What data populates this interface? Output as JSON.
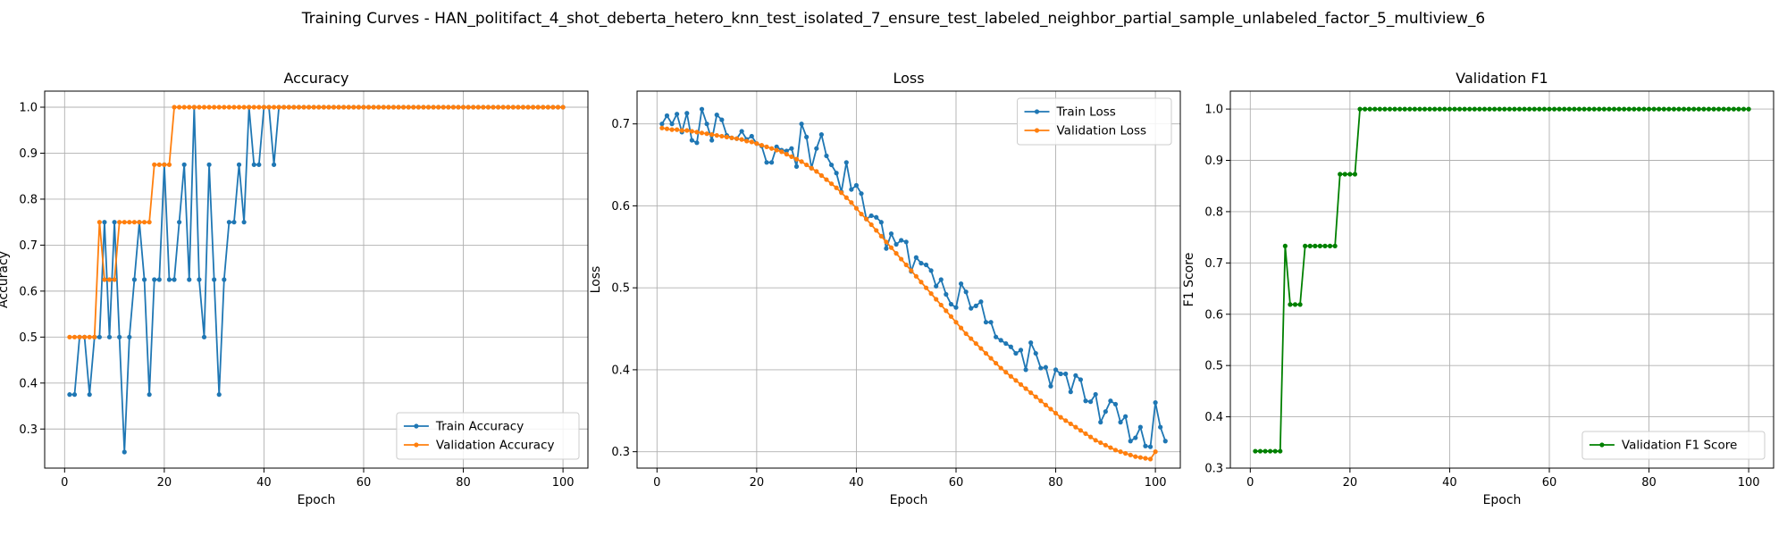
{
  "figure": {
    "suptitle": "Training Curves - HAN_politifact_4_shot_deberta_hetero_knn_test_isolated_7_ensure_test_labeled_neighbor_partial_sample_unlabeled_factor_5_multiview_6"
  },
  "chart_data": [
    {
      "type": "line",
      "title": "Accuracy",
      "xlabel": "Epoch",
      "ylabel": "Accuracy",
      "xlim": [
        -4,
        105
      ],
      "ylim": [
        0.215,
        1.035
      ],
      "xticks": [
        0,
        20,
        40,
        60,
        80,
        100
      ],
      "yticks": [
        0.3,
        0.4,
        0.5,
        0.6,
        0.7,
        0.8,
        0.9,
        1.0
      ],
      "ytick_labels": [
        "0.3",
        "0.4",
        "0.5",
        "0.6",
        "0.7",
        "0.8",
        "0.9",
        "1.0"
      ],
      "grid": true,
      "legend_position": "lower-right",
      "series": [
        {
          "name": "Train Accuracy",
          "color": "#1f77b4",
          "x_start": 1,
          "values": [
            0.375,
            0.375,
            0.5,
            0.5,
            0.375,
            0.5,
            0.5,
            0.75,
            0.5,
            0.75,
            0.5,
            0.25,
            0.5,
            0.625,
            0.75,
            0.625,
            0.375,
            0.625,
            0.625,
            0.875,
            0.625,
            0.625,
            0.75,
            0.875,
            0.625,
            1.0,
            0.625,
            0.5,
            0.875,
            0.625,
            0.375,
            0.625,
            0.75,
            0.75,
            0.875,
            0.75,
            1.0,
            0.875,
            0.875,
            1.0,
            1.0,
            0.875,
            1.0,
            1.0,
            1.0,
            1.0,
            1.0,
            1.0,
            1.0,
            1.0,
            1.0,
            1.0,
            1.0,
            1.0,
            1.0,
            1.0,
            1.0,
            1.0,
            1.0,
            1.0,
            1.0,
            1.0,
            1.0,
            1.0,
            1.0,
            1.0,
            1.0,
            1.0,
            1.0,
            1.0,
            1.0,
            1.0,
            1.0,
            1.0,
            1.0,
            1.0,
            1.0,
            1.0,
            1.0,
            1.0,
            1.0,
            1.0,
            1.0,
            1.0,
            1.0,
            1.0,
            1.0,
            1.0,
            1.0,
            1.0,
            1.0,
            1.0,
            1.0,
            1.0,
            1.0,
            1.0,
            1.0,
            1.0,
            1.0,
            1.0
          ]
        },
        {
          "name": "Validation Accuracy",
          "color": "#ff7f0e",
          "x_start": 1,
          "values": [
            0.5,
            0.5,
            0.5,
            0.5,
            0.5,
            0.5,
            0.75,
            0.625,
            0.625,
            0.625,
            0.75,
            0.75,
            0.75,
            0.75,
            0.75,
            0.75,
            0.75,
            0.875,
            0.875,
            0.875,
            0.875,
            1.0,
            1.0,
            1.0,
            1.0,
            1.0,
            1.0,
            1.0,
            1.0,
            1.0,
            1.0,
            1.0,
            1.0,
            1.0,
            1.0,
            1.0,
            1.0,
            1.0,
            1.0,
            1.0,
            1.0,
            1.0,
            1.0,
            1.0,
            1.0,
            1.0,
            1.0,
            1.0,
            1.0,
            1.0,
            1.0,
            1.0,
            1.0,
            1.0,
            1.0,
            1.0,
            1.0,
            1.0,
            1.0,
            1.0,
            1.0,
            1.0,
            1.0,
            1.0,
            1.0,
            1.0,
            1.0,
            1.0,
            1.0,
            1.0,
            1.0,
            1.0,
            1.0,
            1.0,
            1.0,
            1.0,
            1.0,
            1.0,
            1.0,
            1.0,
            1.0,
            1.0,
            1.0,
            1.0,
            1.0,
            1.0,
            1.0,
            1.0,
            1.0,
            1.0,
            1.0,
            1.0,
            1.0,
            1.0,
            1.0,
            1.0,
            1.0,
            1.0,
            1.0,
            1.0
          ]
        }
      ]
    },
    {
      "type": "line",
      "title": "Loss",
      "xlabel": "Epoch",
      "ylabel": "Loss",
      "xlim": [
        -4,
        105
      ],
      "ylim": [
        0.28,
        0.74
      ],
      "xticks": [
        0,
        20,
        40,
        60,
        80,
        100
      ],
      "yticks": [
        0.3,
        0.4,
        0.5,
        0.6,
        0.7
      ],
      "ytick_labels": [
        "0.3",
        "0.4",
        "0.5",
        "0.6",
        "0.7"
      ],
      "grid": true,
      "legend_position": "upper-right",
      "series": [
        {
          "name": "Train Loss",
          "color": "#1f77b4",
          "x_start": 1,
          "values": [
            0.7,
            0.71,
            0.7,
            0.712,
            0.69,
            0.713,
            0.68,
            0.677,
            0.718,
            0.7,
            0.68,
            0.711,
            0.705,
            0.686,
            0.683,
            0.682,
            0.691,
            0.681,
            0.685,
            0.676,
            0.673,
            0.653,
            0.653,
            0.672,
            0.668,
            0.667,
            0.67,
            0.648,
            0.7,
            0.684,
            0.646,
            0.67,
            0.687,
            0.661,
            0.65,
            0.64,
            0.617,
            0.653,
            0.62,
            0.625,
            0.615,
            0.584,
            0.588,
            0.586,
            0.58,
            0.548,
            0.566,
            0.553,
            0.558,
            0.556,
            0.52,
            0.537,
            0.53,
            0.528,
            0.521,
            0.502,
            0.51,
            0.492,
            0.48,
            0.476,
            0.505,
            0.495,
            0.475,
            0.478,
            0.483,
            0.458,
            0.458,
            0.44,
            0.436,
            0.432,
            0.428,
            0.42,
            0.424,
            0.4,
            0.433,
            0.42,
            0.402,
            0.403,
            0.38,
            0.4,
            0.395,
            0.395,
            0.373,
            0.393,
            0.388,
            0.362,
            0.361,
            0.37,
            0.336,
            0.349,
            0.362,
            0.358,
            0.336,
            0.343,
            0.313,
            0.317,
            0.33,
            0.307,
            0.306,
            0.36,
            0.33,
            0.313
          ]
        },
        {
          "name": "Validation Loss",
          "color": "#ff7f0e",
          "x_start": 1,
          "values": [
            0.695,
            0.694,
            0.693,
            0.693,
            0.692,
            0.692,
            0.691,
            0.69,
            0.689,
            0.688,
            0.687,
            0.686,
            0.685,
            0.684,
            0.683,
            0.682,
            0.681,
            0.679,
            0.678,
            0.676,
            0.674,
            0.672,
            0.67,
            0.668,
            0.666,
            0.663,
            0.66,
            0.657,
            0.654,
            0.65,
            0.646,
            0.642,
            0.637,
            0.632,
            0.627,
            0.622,
            0.616,
            0.61,
            0.604,
            0.597,
            0.59,
            0.584,
            0.577,
            0.57,
            0.563,
            0.556,
            0.549,
            0.542,
            0.535,
            0.528,
            0.521,
            0.514,
            0.507,
            0.5,
            0.493,
            0.486,
            0.479,
            0.472,
            0.465,
            0.458,
            0.451,
            0.444,
            0.438,
            0.432,
            0.426,
            0.42,
            0.414,
            0.408,
            0.402,
            0.397,
            0.392,
            0.387,
            0.382,
            0.377,
            0.372,
            0.367,
            0.362,
            0.357,
            0.352,
            0.347,
            0.342,
            0.338,
            0.334,
            0.33,
            0.326,
            0.322,
            0.318,
            0.314,
            0.311,
            0.308,
            0.305,
            0.302,
            0.3,
            0.298,
            0.296,
            0.294,
            0.293,
            0.292,
            0.291,
            0.3
          ]
        }
      ]
    },
    {
      "type": "line",
      "title": "Validation F1",
      "xlabel": "Epoch",
      "ylabel": "F1 Score",
      "xlim": [
        -4,
        105
      ],
      "ylim": [
        0.3,
        1.035
      ],
      "xticks": [
        0,
        20,
        40,
        60,
        80,
        100
      ],
      "yticks": [
        0.3,
        0.4,
        0.5,
        0.6,
        0.7,
        0.8,
        0.9,
        1.0
      ],
      "ytick_labels": [
        "0.3",
        "0.4",
        "0.5",
        "0.6",
        "0.7",
        "0.8",
        "0.9",
        "1.0"
      ],
      "grid": true,
      "legend_position": "lower-right",
      "series": [
        {
          "name": "Validation F1 Score",
          "color": "#008000",
          "x_start": 1,
          "values": [
            0.333,
            0.333,
            0.333,
            0.333,
            0.333,
            0.333,
            0.733,
            0.619,
            0.619,
            0.619,
            0.733,
            0.733,
            0.733,
            0.733,
            0.733,
            0.733,
            0.733,
            0.873,
            0.873,
            0.873,
            0.873,
            1.0,
            1.0,
            1.0,
            1.0,
            1.0,
            1.0,
            1.0,
            1.0,
            1.0,
            1.0,
            1.0,
            1.0,
            1.0,
            1.0,
            1.0,
            1.0,
            1.0,
            1.0,
            1.0,
            1.0,
            1.0,
            1.0,
            1.0,
            1.0,
            1.0,
            1.0,
            1.0,
            1.0,
            1.0,
            1.0,
            1.0,
            1.0,
            1.0,
            1.0,
            1.0,
            1.0,
            1.0,
            1.0,
            1.0,
            1.0,
            1.0,
            1.0,
            1.0,
            1.0,
            1.0,
            1.0,
            1.0,
            1.0,
            1.0,
            1.0,
            1.0,
            1.0,
            1.0,
            1.0,
            1.0,
            1.0,
            1.0,
            1.0,
            1.0,
            1.0,
            1.0,
            1.0,
            1.0,
            1.0,
            1.0,
            1.0,
            1.0,
            1.0,
            1.0,
            1.0,
            1.0,
            1.0,
            1.0,
            1.0,
            1.0,
            1.0,
            1.0,
            1.0,
            1.0
          ]
        }
      ]
    }
  ]
}
